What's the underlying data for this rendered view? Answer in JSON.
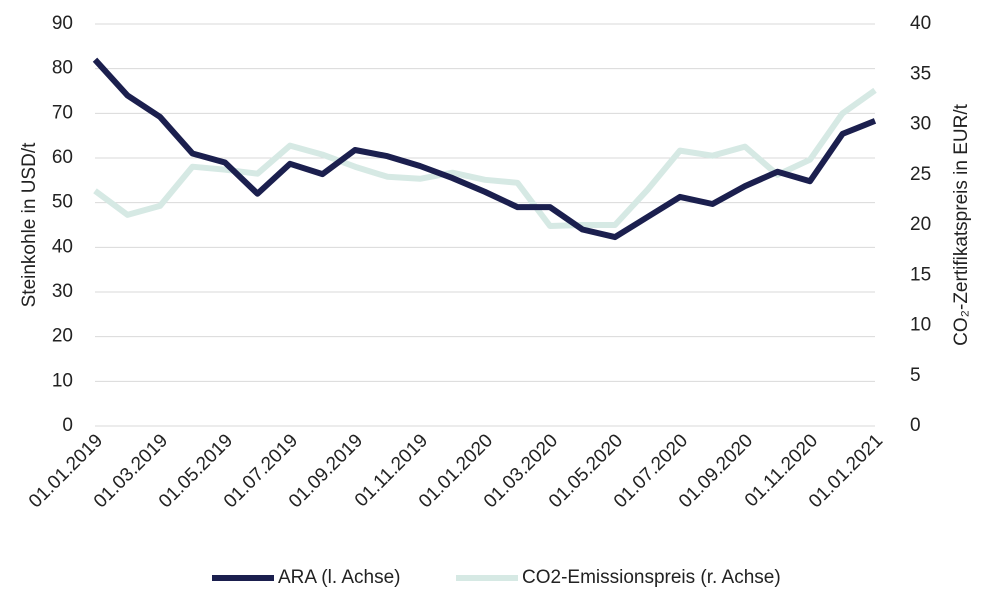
{
  "chart_data": {
    "type": "line",
    "categories": [
      "01.01.2019",
      null,
      "01.03.2019",
      null,
      "01.05.2019",
      null,
      "01.07.2019",
      null,
      "01.09.2019",
      null,
      "01.11.2019",
      null,
      "01.01.2020",
      null,
      "01.03.2020",
      null,
      "01.05.2020",
      null,
      "01.07.2020",
      null,
      "01.09.2020",
      null,
      "01.11.2020",
      null,
      "01.01.2021"
    ],
    "ylabel": "Steinkohle in USD/t",
    "y2label": "CO₂-Zertifikatspreis in EUR/t",
    "ylim": [
      0,
      90
    ],
    "yticks": [
      0,
      10,
      20,
      30,
      40,
      50,
      60,
      70,
      80,
      90
    ],
    "y2lim": [
      0,
      40
    ],
    "y2ticks": [
      0,
      5,
      10,
      15,
      20,
      25,
      30,
      35,
      40
    ],
    "grid": true,
    "legend": "bottom",
    "series": [
      {
        "name": "ARA (l. Achse)",
        "color": "#1b1f4e",
        "axis": "y",
        "values": [
          82,
          74,
          69.2,
          61,
          59,
          52,
          58.7,
          56.4,
          61.8,
          60.4,
          58.2,
          55.5,
          52.4,
          49,
          49,
          44,
          42.3,
          46.8,
          51.3,
          49.7,
          53.7,
          56.9,
          54.8,
          65.4,
          68.3
        ]
      },
      {
        "name": "CO2-Emissionspreis (r. Achse)",
        "color": "#d6e9e4",
        "axis": "y2",
        "values": [
          23.4,
          21,
          21.9,
          25.8,
          25.5,
          25.1,
          27.9,
          27,
          25.8,
          24.8,
          24.6,
          25.2,
          24.5,
          24.2,
          19.9,
          20,
          20,
          23.5,
          27.4,
          26.9,
          27.8,
          25,
          26.5,
          31.1,
          33.4
        ]
      }
    ]
  }
}
